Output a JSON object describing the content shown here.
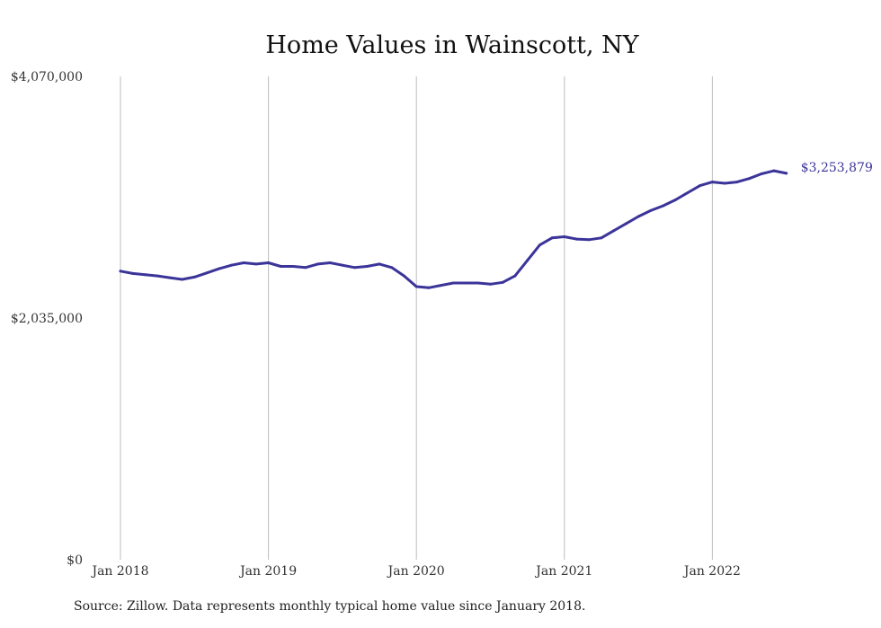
{
  "chart_data": {
    "type": "line",
    "title": "Home Values in Wainscott, NY",
    "ylim": [
      0,
      4070000
    ],
    "y_ticks": [
      {
        "value": 0,
        "label": "$0"
      },
      {
        "value": 2035000,
        "label": "$2,035,000"
      },
      {
        "value": 4070000,
        "label": "$4,070,000"
      }
    ],
    "x_ticks": [
      {
        "value": "2018-01",
        "label": "Jan 2018"
      },
      {
        "value": "2019-01",
        "label": "Jan 2019"
      },
      {
        "value": "2020-01",
        "label": "Jan 2020"
      },
      {
        "value": "2021-01",
        "label": "Jan 2021"
      },
      {
        "value": "2022-01",
        "label": "Jan 2022"
      }
    ],
    "grid": {
      "vertical": true,
      "horizontal": false
    },
    "series": [
      {
        "color": "#3b3499",
        "end_label": "$3,253,879",
        "x": [
          "2018-01",
          "2018-02",
          "2018-03",
          "2018-04",
          "2018-05",
          "2018-06",
          "2018-07",
          "2018-08",
          "2018-09",
          "2018-10",
          "2018-11",
          "2018-12",
          "2019-01",
          "2019-02",
          "2019-03",
          "2019-04",
          "2019-05",
          "2019-06",
          "2019-07",
          "2019-08",
          "2019-09",
          "2019-10",
          "2019-11",
          "2019-12",
          "2020-01",
          "2020-02",
          "2020-03",
          "2020-04",
          "2020-05",
          "2020-06",
          "2020-07",
          "2020-08",
          "2020-09",
          "2020-10",
          "2020-11",
          "2020-12",
          "2021-01",
          "2021-02",
          "2021-03",
          "2021-04",
          "2021-05",
          "2021-06",
          "2021-07",
          "2021-08",
          "2021-09",
          "2021-10",
          "2021-11",
          "2021-12",
          "2022-01",
          "2022-02",
          "2022-03",
          "2022-04",
          "2022-05",
          "2022-06",
          "2022-07"
        ],
        "values": [
          2430000,
          2410000,
          2400000,
          2390000,
          2375000,
          2360000,
          2380000,
          2415000,
          2450000,
          2480000,
          2500000,
          2490000,
          2500000,
          2470000,
          2470000,
          2460000,
          2490000,
          2500000,
          2480000,
          2460000,
          2470000,
          2490000,
          2460000,
          2390000,
          2300000,
          2290000,
          2310000,
          2330000,
          2330000,
          2330000,
          2320000,
          2335000,
          2390000,
          2520000,
          2650000,
          2710000,
          2720000,
          2700000,
          2695000,
          2710000,
          2770000,
          2830000,
          2890000,
          2940000,
          2980000,
          3030000,
          3090000,
          3150000,
          3180000,
          3170000,
          3180000,
          3210000,
          3250000,
          3275000,
          3253879
        ]
      }
    ],
    "source": "Source: Zillow. Data represents monthly typical home value since January 2018."
  }
}
